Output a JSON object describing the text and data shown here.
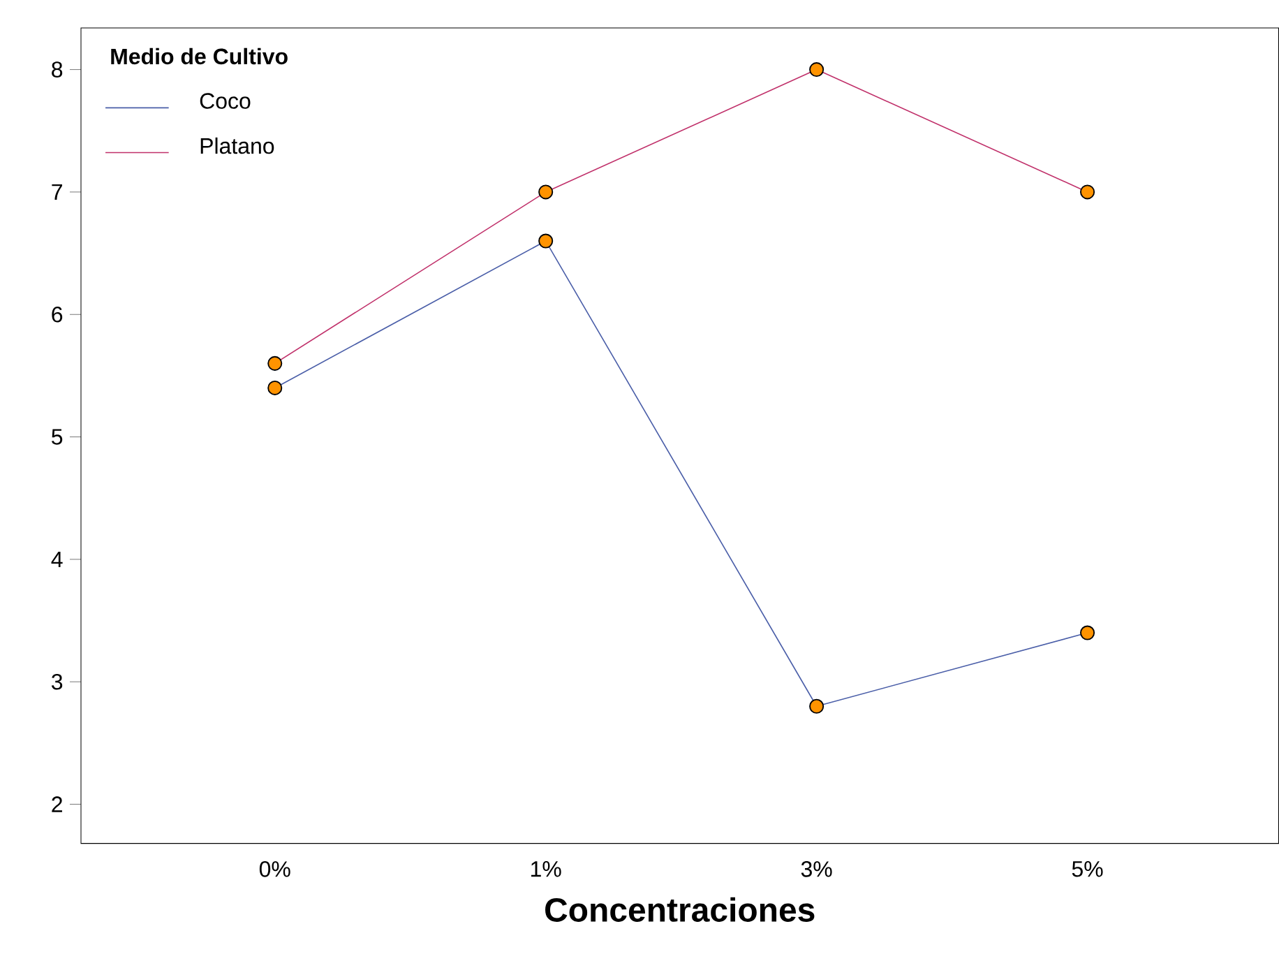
{
  "chart_data": {
    "type": "line",
    "xlabel": "Concentraciones",
    "legend_title": "Medio de Cultivo",
    "categories": [
      "0%",
      "1%",
      "3%",
      "5%"
    ],
    "series": [
      {
        "name": "Coco",
        "color": "#4a5ea8",
        "values": [
          5.4,
          6.6,
          2.8,
          3.4
        ]
      },
      {
        "name": "Platano",
        "color": "#c0306a",
        "values": [
          5.6,
          7.0,
          8.0,
          7.0
        ]
      }
    ],
    "ylim": [
      1.68,
      8.34
    ],
    "yticks": [
      2,
      3,
      4,
      5,
      6,
      7,
      8
    ],
    "marker": "circle",
    "legend": "top left",
    "grid": false
  }
}
